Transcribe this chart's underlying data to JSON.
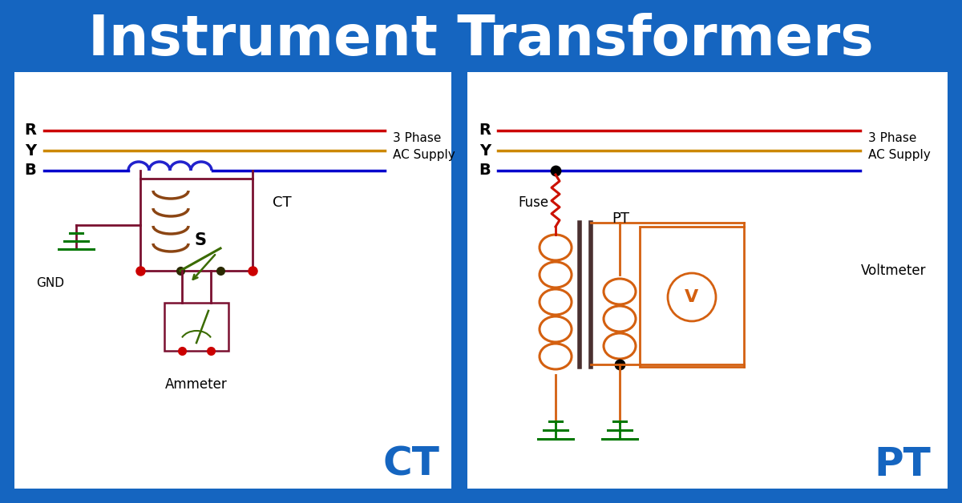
{
  "title": "Instrument Transformers",
  "bg_color": "#1565c0",
  "panel_color": "#ffffff",
  "title_color": "#ffffff",
  "title_fontsize": 50,
  "ct_label": "CT",
  "pt_label": "PT",
  "label_color": "#1565c0",
  "phase_labels": [
    "R",
    "Y",
    "B"
  ],
  "phase_colors": [
    "#cc0000",
    "#cc8800",
    "#0000cc"
  ],
  "supply_text_1": "3 Phase",
  "supply_text_2": "AC Supply",
  "gnd_text": "GND",
  "ammeter_text": "Ammeter",
  "fuse_text": "Fuse",
  "pt_text": "PT",
  "ct_secondary_text": "CT",
  "voltmeter_text": "Voltmeter",
  "wire_color": "#7a1030",
  "blue_coil": "#2222cc",
  "brown_coil": "#8B4513",
  "orange": "#d46010",
  "green_gnd": "#007700",
  "red_fuse": "#cc1100",
  "switch_color": "#3a6b00",
  "dark_core": "#4a3030"
}
